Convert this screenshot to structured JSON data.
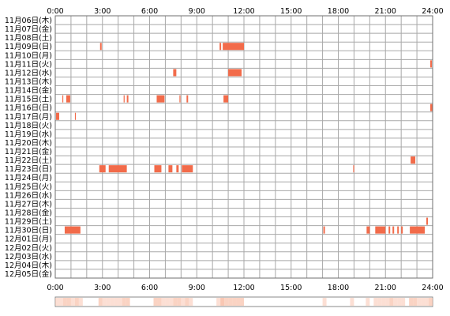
{
  "chart_data": {
    "type": "heatmap",
    "x_axis": {
      "range_hours": [
        0,
        24
      ],
      "ticks": [
        "0:00",
        "3:00",
        "6:00",
        "9:00",
        "12:00",
        "15:00",
        "18:00",
        "21:00",
        "24:00"
      ]
    },
    "days": [
      "11月06日(木)",
      "11月07日(金)",
      "11月08日(土)",
      "11月09日(日)",
      "11月10日(月)",
      "11月11日(火)",
      "11月12日(水)",
      "11月13日(木)",
      "11月14日(金)",
      "11月15日(土)",
      "11月16日(日)",
      "11月17日(月)",
      "11月18日(火)",
      "11月19日(水)",
      "11月20日(木)",
      "11月21日(金)",
      "11月22日(土)",
      "11月23日(日)",
      "11月24日(月)",
      "11月25日(火)",
      "11月26日(水)",
      "11月27日(木)",
      "11月28日(金)",
      "11月29日(土)",
      "11月30日(日)",
      "12月01日(月)",
      "12月02日(火)",
      "12月03日(水)",
      "12月04日(木)",
      "12月05日(金)"
    ],
    "activity_color": "#f26b4a",
    "summary_color": "#f9c7b3",
    "grid_color": "#a8a8a8",
    "activity": [
      [],
      [],
      [],
      [
        [
          2.85,
          2.95
        ],
        [
          10.45,
          10.55
        ],
        [
          10.65,
          12.0
        ]
      ],
      [],
      [
        [
          23.85,
          23.95
        ]
      ],
      [
        [
          7.5,
          7.7
        ],
        [
          11.0,
          11.85
        ]
      ],
      [],
      [],
      [
        [
          0.45,
          0.5
        ],
        [
          0.7,
          0.95
        ],
        [
          4.35,
          4.4
        ],
        [
          4.55,
          4.65
        ],
        [
          6.45,
          6.95
        ],
        [
          7.9,
          7.95
        ],
        [
          8.35,
          8.45
        ],
        [
          10.7,
          11.0
        ]
      ],
      [
        [
          23.85,
          24.0
        ]
      ],
      [
        [
          0.05,
          0.25
        ],
        [
          1.25,
          1.3
        ]
      ],
      [],
      [],
      [],
      [],
      [
        [
          22.6,
          22.9
        ]
      ],
      [
        [
          2.8,
          3.2
        ],
        [
          3.4,
          4.55
        ],
        [
          6.3,
          6.75
        ],
        [
          7.2,
          7.45
        ],
        [
          7.7,
          7.85
        ],
        [
          8.05,
          8.75
        ],
        [
          18.95,
          19.0
        ]
      ],
      [],
      [],
      [],
      [],
      [],
      [
        [
          23.6,
          23.7
        ]
      ],
      [
        [
          0.6,
          1.6
        ],
        [
          17.05,
          17.15
        ],
        [
          19.8,
          20.0
        ],
        [
          20.35,
          21.0
        ],
        [
          21.2,
          21.3
        ],
        [
          21.45,
          21.55
        ],
        [
          21.75,
          21.85
        ],
        [
          22.0,
          22.1
        ],
        [
          22.55,
          23.5
        ]
      ],
      [],
      [],
      [],
      [],
      []
    ]
  }
}
